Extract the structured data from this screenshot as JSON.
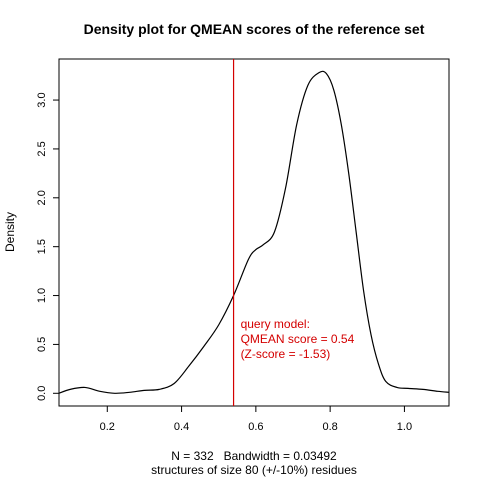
{
  "chart_data": {
    "type": "line",
    "title": "Density plot for QMEAN scores of the reference set",
    "xlabel": "N = 332   Bandwidth = 0.03492",
    "xlabel2": "structures of size 80 (+/-10%) residues",
    "ylabel": "Density",
    "xlim": [
      0.07,
      1.12
    ],
    "ylim": [
      -0.13,
      3.42
    ],
    "x_ticks": [
      0.2,
      0.4,
      0.6,
      0.8,
      1.0
    ],
    "x_tick_labels": [
      "0.2",
      "0.4",
      "0.6",
      "0.8",
      "1.0"
    ],
    "y_ticks": [
      0.0,
      0.5,
      1.0,
      1.5,
      2.0,
      2.5,
      3.0
    ],
    "y_tick_labels": [
      "0.0",
      "0.5",
      "1.0",
      "1.5",
      "2.0",
      "2.5",
      "3.0"
    ],
    "series": [
      {
        "x": [
          0.07,
          0.1,
          0.14,
          0.18,
          0.22,
          0.26,
          0.3,
          0.34,
          0.38,
          0.42,
          0.46,
          0.5,
          0.54,
          0.58,
          0.6,
          0.62,
          0.65,
          0.68,
          0.71,
          0.74,
          0.77,
          0.79,
          0.81,
          0.83,
          0.85,
          0.87,
          0.89,
          0.91,
          0.93,
          0.95,
          0.98,
          1.01,
          1.05,
          1.09,
          1.12
        ],
        "y": [
          0.0,
          0.04,
          0.06,
          0.02,
          0.0,
          0.01,
          0.03,
          0.04,
          0.1,
          0.28,
          0.48,
          0.7,
          1.0,
          1.37,
          1.47,
          1.52,
          1.65,
          2.1,
          2.75,
          3.15,
          3.28,
          3.27,
          3.1,
          2.75,
          2.25,
          1.65,
          1.05,
          0.6,
          0.3,
          0.12,
          0.06,
          0.05,
          0.04,
          0.02,
          0.01
        ]
      }
    ],
    "reference_line": {
      "x": 0.54,
      "color": "#d40000"
    },
    "annotation": {
      "lines": [
        "query model:",
        "QMEAN score = 0.54",
        "(Z-score = -1.53)"
      ],
      "color": "#d40000"
    },
    "grid": false,
    "line_color": "#000000"
  }
}
